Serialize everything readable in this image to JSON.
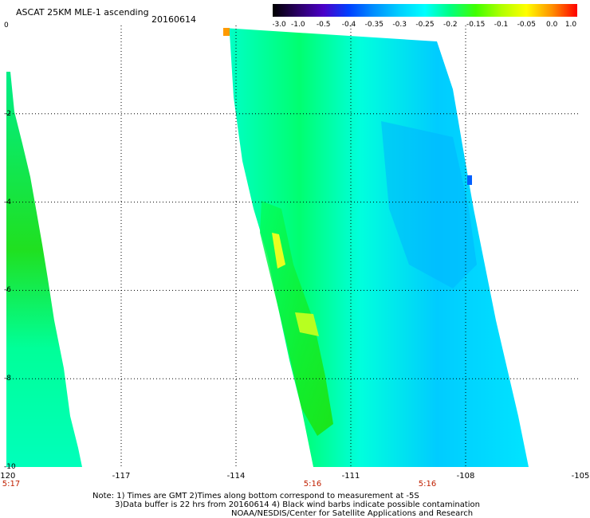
{
  "header": {
    "title": "ASCAT 25KM MLE-1 ascending",
    "date": "20160614"
  },
  "colorbar": {
    "labels": [
      "-3.0",
      "-1.0",
      "-0.5",
      "-0.4",
      "-0.35",
      "-0.3",
      "-0.25",
      "-0.2",
      "-0.15",
      "-0.1",
      "-0.05",
      "0.0",
      "1.0"
    ],
    "colors": [
      "#000000",
      "#2a0064",
      "#4a00c8",
      "#0040ff",
      "#0090ff",
      "#00d0ff",
      "#00ffff",
      "#00ff80",
      "#40ff00",
      "#b0ff00",
      "#ffff00",
      "#ff9000",
      "#ff0000"
    ]
  },
  "map": {
    "x_ticks": [
      "-120",
      "-117",
      "-114",
      "-111",
      "-108",
      "-105"
    ],
    "y_ticks": [
      "0",
      "-2",
      "-4",
      "-6",
      "-8",
      "-10"
    ],
    "lon_range": [
      -120,
      -105
    ],
    "lat_range": [
      -10,
      0
    ],
    "time_labels": [
      {
        "lon": -120,
        "text": "5:17"
      },
      {
        "lon": -112,
        "text": "5:16"
      },
      {
        "lon": -109,
        "text": "5:16"
      }
    ]
  },
  "footer": {
    "line1": "Note: 1) Times are GMT 2)Times along bottom correspond to measurement at -5S",
    "line2": "3)Data buffer is 22 hrs from 20160614 4) Black wind barbs indicate possible contamination",
    "line3": "NOAA/NESDIS/Center for Satellite Applications and Research"
  }
}
